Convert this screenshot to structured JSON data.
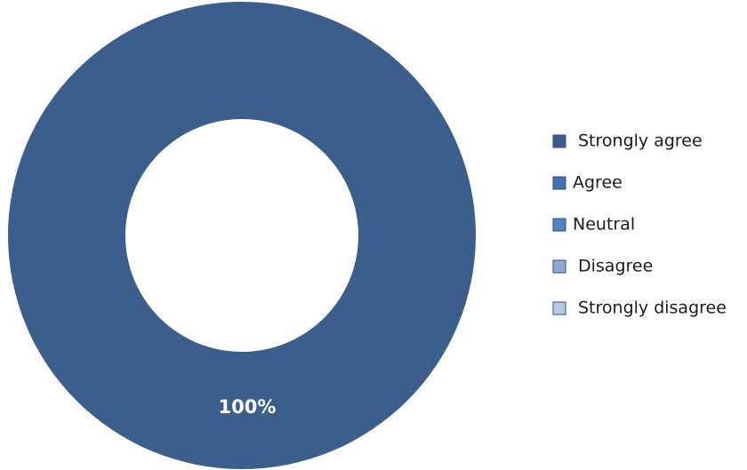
{
  "chart_data": {
    "type": "pie",
    "variant": "donut",
    "title": "",
    "categories": [
      "Strongly agree",
      "Agree",
      "Neutral",
      "Disagree",
      "Strongly disagree"
    ],
    "values": [
      100,
      0,
      0,
      0,
      0
    ],
    "data_labels": [
      "100%",
      "",
      "",
      "",
      ""
    ],
    "colors": [
      "#3B5E8C",
      "#4472AF",
      "#5383C2",
      "#8FA9D2",
      "#B8C9E6"
    ],
    "legend": {
      "position": "right",
      "entries": [
        "Strongly agree",
        "Agree",
        "Neutral",
        "Disagree",
        "Strongly disagree"
      ]
    }
  }
}
